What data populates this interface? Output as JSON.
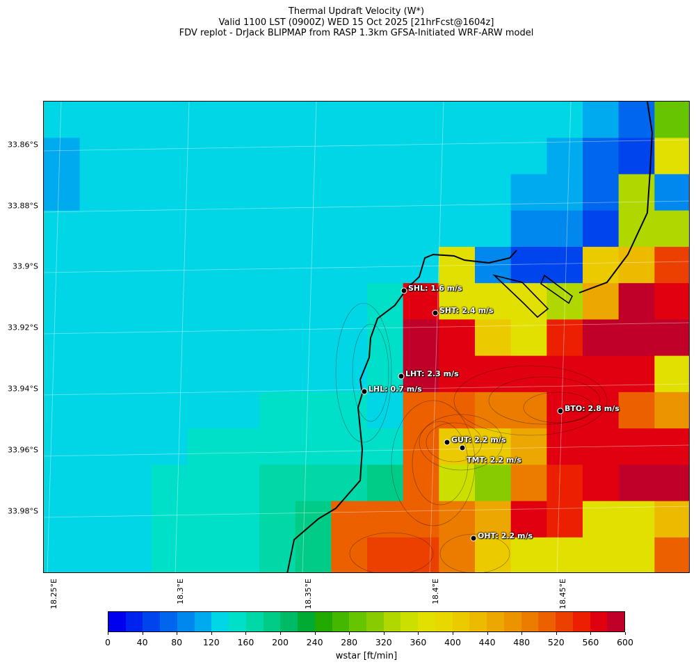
{
  "title": {
    "line1": "Thermal Updraft Velocity (W*)",
    "line2": "Valid 1100 LST (0900Z) WED 15 Oct 2025 [21hrFcst@1604z]",
    "line3": "FDV replot - DrJack BLIPMAP from RASP 1.3km GFSA-Initiated WRF-ARW model"
  },
  "lat_labels": [
    "33.86°S",
    "33.88°S",
    "33.9°S",
    "33.92°S",
    "33.94°S",
    "33.96°S",
    "33.98°S"
  ],
  "lon_labels": [
    "18.25°E",
    "18.3°E",
    "18.35°E",
    "18.4°E",
    "18.45°E"
  ],
  "stations": [
    {
      "name": "SHL",
      "text": "SHL: 1.6 m/s"
    },
    {
      "name": "SHT",
      "text": "SHT: 2.4 m/s"
    },
    {
      "name": "LHT",
      "text": "LHT: 2.3 m/s"
    },
    {
      "name": "LHL",
      "text": "LHL: 0.7 m/s"
    },
    {
      "name": "BTO",
      "text": "BTO: 2.8 m/s"
    },
    {
      "name": "GUT",
      "text": "GUT: 2.2 m/s"
    },
    {
      "name": "TMT",
      "text": "TMT: 2.2 m/s"
    },
    {
      "name": "OHT",
      "text": "OHT: 2.2 m/s"
    }
  ],
  "colorbar": {
    "label": "wstar [ft/min]",
    "ticks": [
      "0",
      "40",
      "80",
      "120",
      "160",
      "200",
      "240",
      "280",
      "320",
      "360",
      "400",
      "440",
      "480",
      "520",
      "560",
      "600"
    ],
    "range": [
      0,
      600
    ],
    "step": 20,
    "colors": [
      "#0000ee",
      "#0022ee",
      "#0044ee",
      "#0066ee",
      "#0088ee",
      "#00aaee",
      "#00d6e6",
      "#00e0c8",
      "#00d8a8",
      "#00cc88",
      "#00bb66",
      "#00aa33",
      "#22aa00",
      "#44b800",
      "#66c400",
      "#88cc00",
      "#b0d800",
      "#cce000",
      "#e2e000",
      "#e8d800",
      "#ecca00",
      "#ecbb00",
      "#eca800",
      "#ec9400",
      "#ec7c00",
      "#ec6000",
      "#ec4000",
      "#ec2000",
      "#e00010",
      "#c00028"
    ]
  },
  "grid": {
    "description_values": [
      [
        120,
        120,
        120,
        120,
        120,
        120,
        120,
        120,
        120,
        120,
        120,
        120,
        120,
        120,
        120,
        100,
        60,
        280
      ],
      [
        100,
        120,
        120,
        120,
        120,
        120,
        120,
        120,
        120,
        120,
        120,
        120,
        120,
        120,
        100,
        60,
        40,
        360
      ],
      [
        100,
        120,
        120,
        120,
        120,
        120,
        120,
        120,
        120,
        120,
        120,
        120,
        120,
        100,
        100,
        60,
        320,
        80
      ],
      [
        120,
        120,
        120,
        120,
        120,
        120,
        120,
        120,
        120,
        120,
        120,
        120,
        120,
        80,
        80,
        40,
        320,
        320
      ],
      [
        120,
        120,
        120,
        120,
        120,
        120,
        120,
        120,
        120,
        120,
        120,
        370,
        80,
        40,
        40,
        400,
        420,
        520
      ],
      [
        120,
        120,
        120,
        120,
        120,
        120,
        120,
        120,
        120,
        140,
        560,
        360,
        360,
        360,
        320,
        440,
        580,
        560
      ],
      [
        120,
        120,
        120,
        120,
        120,
        120,
        120,
        120,
        120,
        140,
        580,
        560,
        400,
        360,
        540,
        580,
        580,
        580
      ],
      [
        120,
        120,
        120,
        120,
        120,
        120,
        120,
        120,
        120,
        140,
        580,
        560,
        560,
        560,
        560,
        560,
        560,
        360
      ],
      [
        120,
        120,
        120,
        120,
        120,
        120,
        140,
        140,
        140,
        120,
        500,
        500,
        480,
        480,
        560,
        560,
        500,
        460
      ],
      [
        120,
        120,
        120,
        120,
        140,
        140,
        140,
        140,
        140,
        140,
        500,
        400,
        400,
        440,
        560,
        560,
        560,
        560
      ],
      [
        120,
        120,
        120,
        140,
        140,
        140,
        160,
        160,
        160,
        180,
        500,
        340,
        300,
        480,
        540,
        560,
        580,
        580
      ],
      [
        120,
        120,
        120,
        140,
        140,
        140,
        160,
        180,
        500,
        500,
        500,
        480,
        440,
        560,
        540,
        360,
        360,
        420
      ],
      [
        120,
        120,
        120,
        140,
        140,
        140,
        160,
        180,
        500,
        520,
        520,
        480,
        400,
        360,
        360,
        360,
        360,
        500
      ]
    ]
  }
}
